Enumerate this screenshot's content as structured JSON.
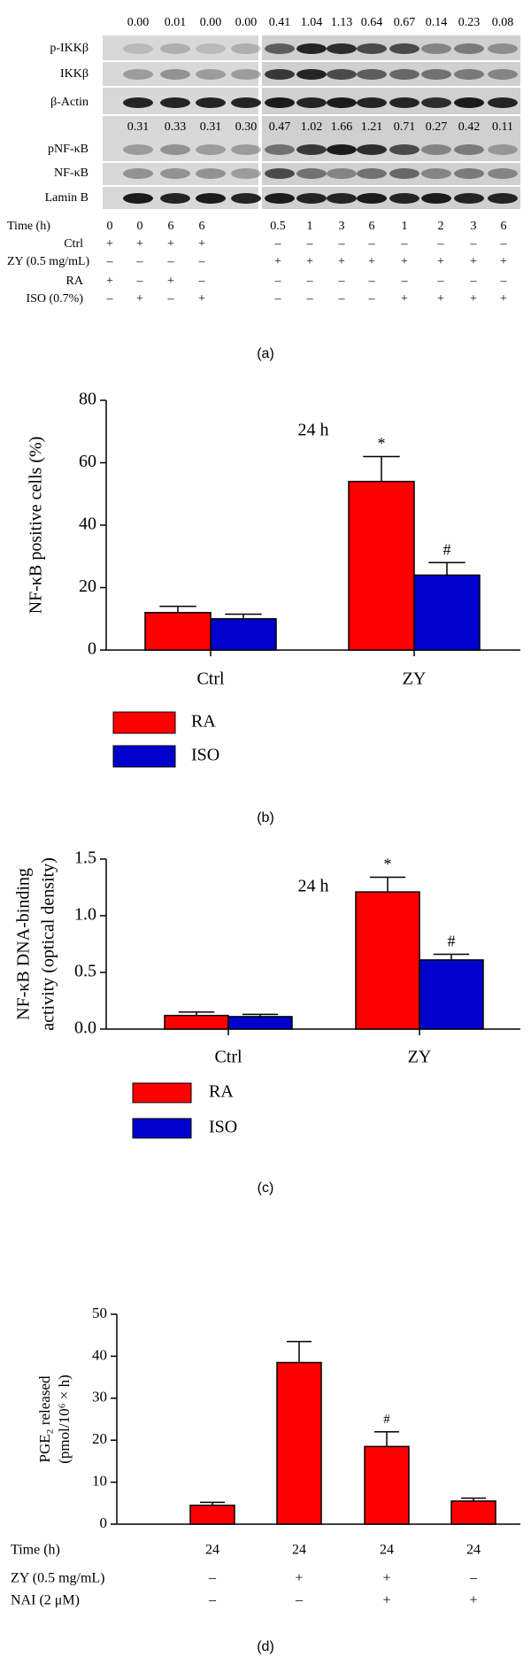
{
  "blot": {
    "rows": [
      "p-IKKβ",
      "IKKβ",
      "β-Actin",
      "pNF-κB",
      "NF-κB",
      "Lamin B"
    ],
    "densities": [
      {
        "left": [
          "0.00",
          "0.01",
          "0.00",
          "0.00"
        ],
        "right": [
          "0.41",
          "1.04",
          "1.13",
          "0.64",
          "0.67",
          "0.14",
          "0.23",
          "0.08"
        ]
      },
      {
        "left": [
          "0.31",
          "0.33",
          "0.31",
          "0.30"
        ],
        "right": [
          "0.47",
          "1.02",
          "1.66",
          "1.21",
          "0.71",
          "0.27",
          "0.42",
          "0.11"
        ]
      }
    ],
    "conditions": [
      {
        "label": "Time (h)",
        "cells": [
          "0",
          "0",
          "6",
          "6",
          "0.5",
          "1",
          "3",
          "6",
          "1",
          "2",
          "3",
          "6"
        ]
      },
      {
        "label": "Ctrl",
        "cells": [
          "+",
          "+",
          "+",
          "+",
          "–",
          "–",
          "–",
          "–",
          "–",
          "–",
          "–",
          "–"
        ]
      },
      {
        "label": "ZY (0.5 mg/mL)",
        "cells": [
          "–",
          "–",
          "–",
          "–",
          "+",
          "+",
          "+",
          "+",
          "+",
          "+",
          "+",
          "+"
        ]
      },
      {
        "label": "RA",
        "cells": [
          "+",
          "–",
          "+",
          "–",
          "–",
          "–",
          "–",
          "–",
          "–",
          "–",
          "–",
          "–"
        ]
      },
      {
        "label": "ISO (0.7%)",
        "cells": [
          "–",
          "+",
          "–",
          "+",
          "–",
          "–",
          "–",
          "–",
          "+",
          "+",
          "+",
          "+"
        ]
      }
    ],
    "caption": "(a)"
  },
  "chart_data": [
    {
      "type": "bar",
      "title": "24 h",
      "ylabel": [
        "NF-κB positive cells (%)"
      ],
      "categories": [
        "Ctrl",
        "ZY"
      ],
      "series": [
        {
          "name": "RA",
          "color": "#ff0000",
          "values": [
            12,
            54
          ],
          "errors": [
            2,
            8
          ],
          "annotations": [
            null,
            "*"
          ]
        },
        {
          "name": "ISO",
          "color": "#0000cc",
          "values": [
            10,
            24
          ],
          "errors": [
            1.5,
            4
          ],
          "annotations": [
            null,
            "#"
          ]
        }
      ],
      "ylim": [
        0,
        80
      ],
      "yticks": [
        0,
        20,
        40,
        60,
        80
      ],
      "legend": "below",
      "caption": "(b)"
    },
    {
      "type": "bar",
      "title": "24 h",
      "ylabel": [
        "NF-κB DNA-binding",
        "activity (optical density)"
      ],
      "categories": [
        "Ctrl",
        "ZY"
      ],
      "series": [
        {
          "name": "RA",
          "color": "#ff0000",
          "values": [
            0.12,
            1.21
          ],
          "errors": [
            0.03,
            0.13
          ],
          "annotations": [
            null,
            "*"
          ]
        },
        {
          "name": "ISO",
          "color": "#0000cc",
          "values": [
            0.11,
            0.61
          ],
          "errors": [
            0.02,
            0.05
          ],
          "annotations": [
            null,
            "#"
          ]
        }
      ],
      "ylim": [
        0,
        1.5
      ],
      "yticks": [
        {
          "value": 0,
          "label": "0.0"
        },
        0.5,
        {
          "value": 1,
          "label": "1.0"
        },
        1.5
      ],
      "legend": "below",
      "caption": "(c)"
    },
    {
      "type": "bar",
      "ylabel": [
        "PGE₂ released",
        "(pmol/10⁶ × h)"
      ],
      "color": "#ff0000",
      "values": [
        4.5,
        38.5,
        18.5,
        5.5
      ],
      "errors": [
        0.7,
        5,
        3.5,
        0.7
      ],
      "annotations": [
        null,
        null,
        "#",
        null
      ],
      "conditions": [
        {
          "label": "Time (h)",
          "cells": [
            "24",
            "24",
            "24",
            "24"
          ]
        },
        {
          "label": "ZY (0.5 mg/mL)",
          "cells": [
            "–",
            "+",
            "+",
            "–"
          ]
        },
        {
          "label": "NAI (2 μM)",
          "cells": [
            "–",
            "–",
            "+",
            "+"
          ]
        }
      ],
      "ylim": [
        0,
        50
      ],
      "yticks": [
        0,
        10,
        20,
        30,
        40,
        50
      ],
      "caption": "(d)"
    }
  ]
}
